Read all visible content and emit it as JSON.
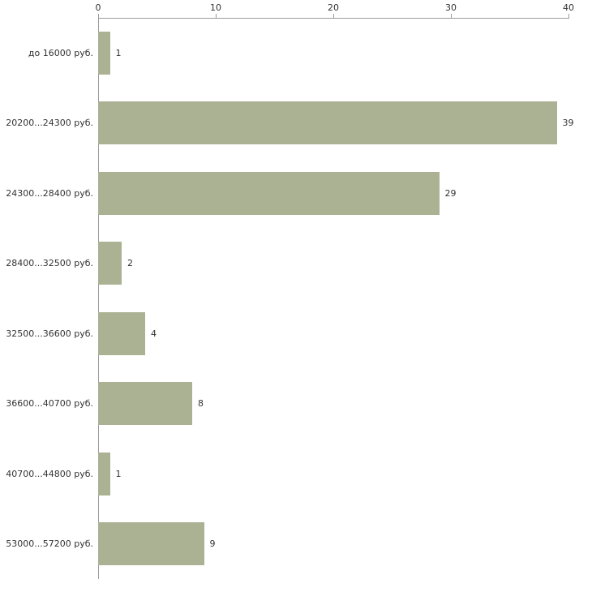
{
  "chart_data": {
    "type": "bar",
    "orientation": "horizontal",
    "title": "",
    "xlabel": "",
    "ylabel": "",
    "categories": [
      "до 16000 руб.",
      "20200...24300 руб.",
      "24300...28400 руб.",
      "28400...32500 руб.",
      "32500...36600 руб.",
      "36600...40700 руб.",
      "40700...44800 руб.",
      "53000...57200 руб."
    ],
    "values": [
      1,
      39,
      29,
      2,
      4,
      8,
      1,
      9
    ],
    "value_labels": [
      "1",
      "39",
      "29",
      "2",
      "4",
      "8",
      "1",
      "9"
    ],
    "xlim": [
      0,
      40
    ],
    "x_ticks": [
      0,
      10,
      20,
      30,
      40
    ],
    "grid": false,
    "legend": false,
    "bar_color": "#abb294",
    "axis_color": "#9a9a9a",
    "text_color": "#333333",
    "background_color": "#ffffff"
  }
}
